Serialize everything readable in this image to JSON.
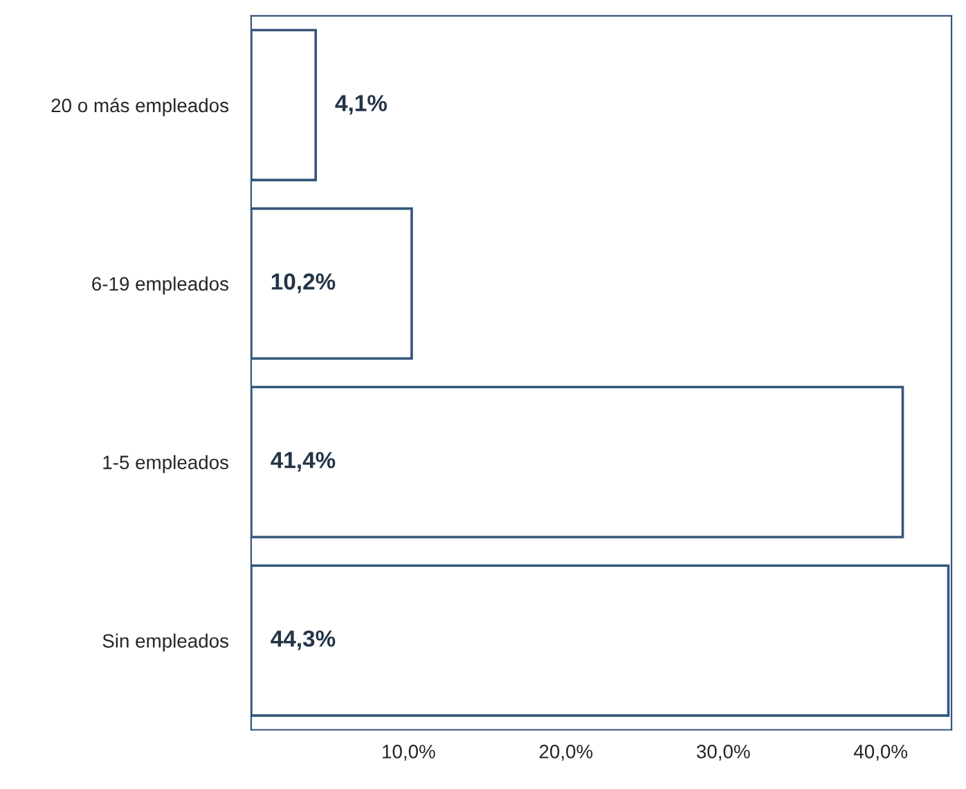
{
  "chart_data": {
    "type": "bar",
    "orientation": "horizontal",
    "categories": [
      "20 o más empleados",
      "6-19 empleados",
      "1-5 empleados",
      "Sin empleados"
    ],
    "values": [
      4.1,
      10.2,
      41.4,
      44.3
    ],
    "value_labels": [
      "4,1%",
      "10,2%",
      "41,4%",
      "44,3%"
    ],
    "color": "#35567a",
    "xlim": [
      0,
      44.5
    ],
    "xticks": [
      {
        "value": 10,
        "label": "10,0%"
      },
      {
        "value": 20,
        "label": "20,0%"
      },
      {
        "value": 30,
        "label": "30,0%"
      },
      {
        "value": 40,
        "label": "40,0%"
      }
    ],
    "grid": false,
    "legend": false
  }
}
